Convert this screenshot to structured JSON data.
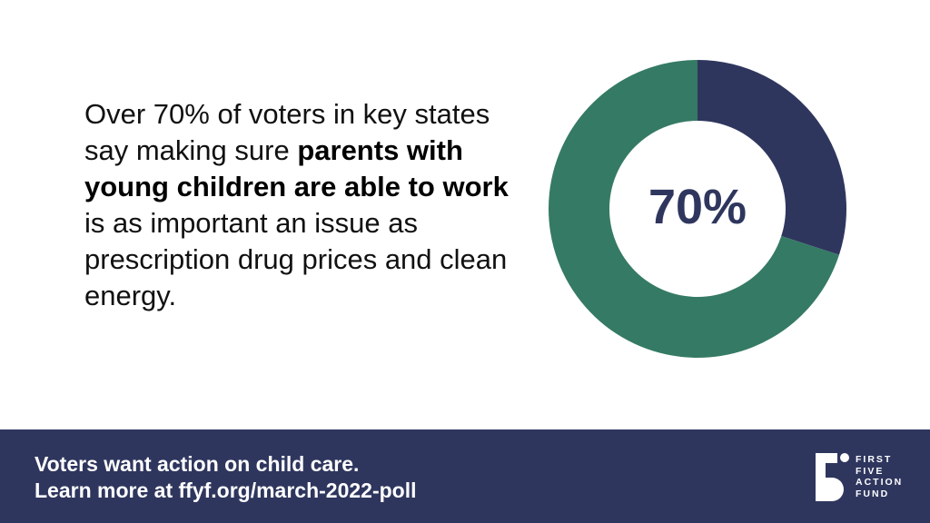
{
  "statement": {
    "part1": "Over 70% of voters in key states say making sure ",
    "bold": "parents with young children are able to work",
    "part2": " is as important an issue as prescription drug prices and clean energy."
  },
  "chart_data": {
    "type": "pie",
    "donut": true,
    "center_label": "70%",
    "slices": [
      {
        "value": 30,
        "color": "#2f365e"
      },
      {
        "value": 70,
        "color": "#357a64"
      }
    ]
  },
  "footer": {
    "line1": "Voters want action on child care.",
    "line2": "Learn more at ffyf.org/march-2022-poll"
  },
  "logo": {
    "words": [
      "FIRST",
      "FIVE",
      "ACTION",
      "FUND"
    ]
  },
  "colors": {
    "navy": "#2f365e",
    "green": "#357a64",
    "white": "#ffffff"
  }
}
